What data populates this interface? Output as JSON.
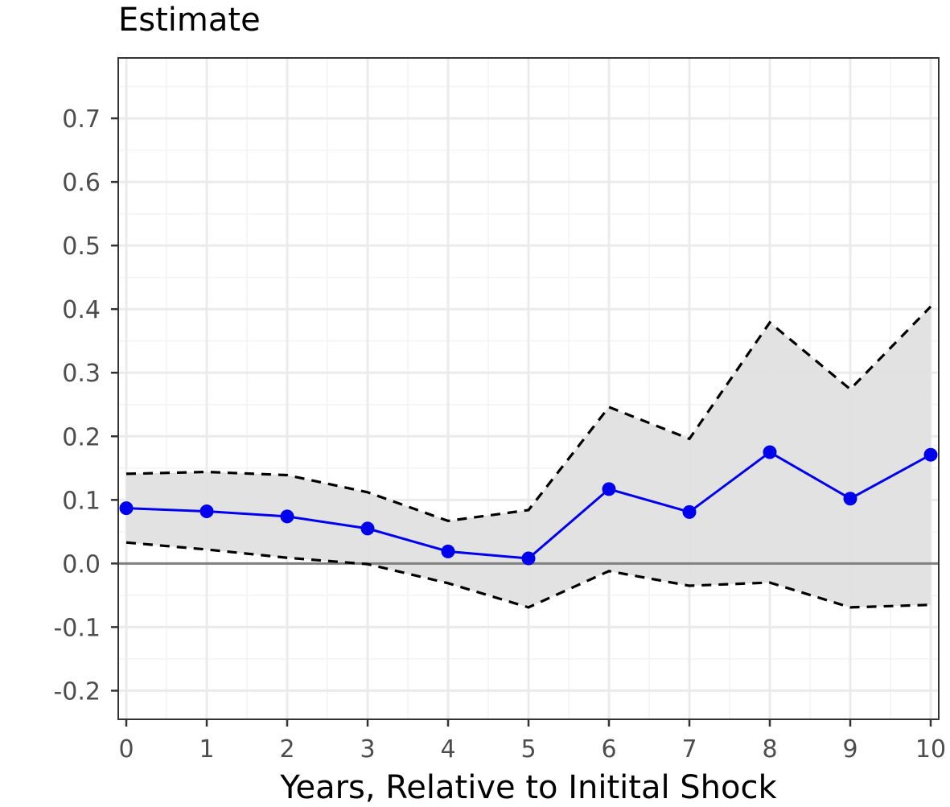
{
  "chart_data": {
    "type": "line",
    "title": "Estimate",
    "xlabel": "Years, Relative to Initital Shock",
    "ylabel": "",
    "x": [
      0,
      1,
      2,
      3,
      4,
      5,
      6,
      7,
      8,
      9,
      10
    ],
    "x_tick_labels": [
      "0",
      "1",
      "2",
      "3",
      "4",
      "5",
      "6",
      "7",
      "8",
      "9",
      "10"
    ],
    "y_ticks": [
      -0.2,
      -0.1,
      0.0,
      0.1,
      0.2,
      0.3,
      0.4,
      0.5,
      0.6,
      0.7
    ],
    "y_tick_labels": [
      "-0.2",
      "-0.1",
      "0.0",
      "0.1",
      "0.2",
      "0.3",
      "0.4",
      "0.5",
      "0.6",
      "0.7"
    ],
    "xlim": [
      -0.1,
      10.1
    ],
    "ylim": [
      -0.245,
      0.795
    ],
    "grid": true,
    "reference_line_y": 0.0,
    "series": [
      {
        "role": "estimate",
        "values": [
          0.087,
          0.082,
          0.074,
          0.055,
          0.019,
          0.008,
          0.117,
          0.081,
          0.175,
          0.102,
          0.171
        ],
        "color": "#0000ee",
        "markers": true
      },
      {
        "role": "upper-bound",
        "values": [
          0.141,
          0.144,
          0.139,
          0.112,
          0.067,
          0.084,
          0.246,
          0.196,
          0.379,
          0.274,
          0.404
        ],
        "color": "#000000",
        "dashed": true
      },
      {
        "role": "lower-bound",
        "values": [
          0.033,
          0.022,
          0.009,
          -0.001,
          -0.031,
          -0.069,
          -0.012,
          -0.035,
          -0.03,
          -0.069,
          -0.065
        ],
        "color": "#000000",
        "dashed": true
      }
    ],
    "band_fill": "#e0e0e0",
    "grid_major_color": "#ebebeb",
    "grid_minor_color": "#f3f3f3",
    "panel_border_color": "#333333",
    "zero_line_color": "#808080"
  }
}
